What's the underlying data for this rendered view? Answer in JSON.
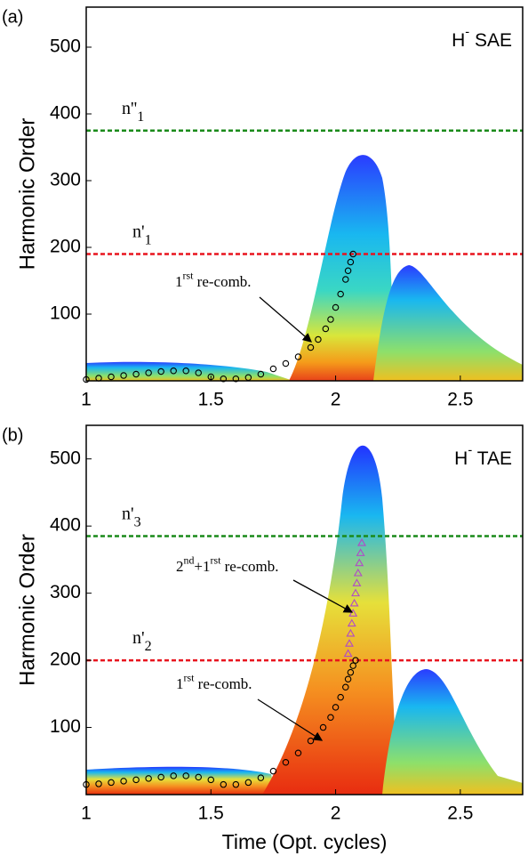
{
  "chart_data": [
    {
      "type": "spectrogram",
      "panel_label": "(a)",
      "title": [
        {
          "text": "H"
        },
        {
          "sup": "-"
        },
        {
          "text": " SAE"
        }
      ],
      "ylabel": "Harmonic Order",
      "xlim": [
        1,
        2.75
      ],
      "ylim": [
        0,
        560
      ],
      "xticks": [
        1,
        1.5,
        2,
        2.5
      ],
      "yticks": [
        100,
        200,
        300,
        400,
        500
      ],
      "hlines": [
        {
          "label": "n''",
          "sub": "1",
          "value": 375,
          "color": "#1a8a1a"
        },
        {
          "label": "n'",
          "sub": "1",
          "value": 190,
          "color": "#e8141e"
        }
      ],
      "series": [
        {
          "marker": "circle",
          "color": "#000000",
          "x": [
            1.0,
            1.05,
            1.1,
            1.15,
            1.2,
            1.25,
            1.3,
            1.35,
            1.4,
            1.45,
            1.5,
            1.55,
            1.6,
            1.65,
            1.7,
            1.75,
            1.8,
            1.85,
            1.9,
            1.93,
            1.96,
            1.98,
            2.0,
            2.02,
            2.04,
            2.05,
            2.06,
            2.07
          ],
          "values": [
            2,
            4,
            6,
            8,
            10,
            12,
            14,
            15,
            15,
            12,
            6,
            3,
            3,
            5,
            10,
            18,
            26,
            36,
            50,
            62,
            78,
            92,
            110,
            130,
            152,
            165,
            178,
            190
          ]
        }
      ],
      "annotations": [
        [
          {
            "text": "1"
          },
          {
            "sup": "rst"
          },
          {
            "text": " re-comb."
          }
        ]
      ]
    },
    {
      "type": "spectrogram",
      "panel_label": "(b)",
      "title": [
        {
          "text": "H"
        },
        {
          "sup": "-"
        },
        {
          "text": " TAE"
        }
      ],
      "ylabel": "Harmonic Order",
      "xlabel": "Time (Opt. cycles)",
      "xlim": [
        1,
        2.75
      ],
      "ylim": [
        0,
        550
      ],
      "xticks": [
        1,
        1.5,
        2,
        2.5
      ],
      "yticks": [
        100,
        200,
        300,
        400,
        500
      ],
      "hlines": [
        {
          "label": "n'",
          "sub": "3",
          "value": 385,
          "color": "#1a8a1a"
        },
        {
          "label": "n'",
          "sub": "2",
          "value": 200,
          "color": "#e8141e"
        }
      ],
      "series": [
        {
          "marker": "circle",
          "color": "#000000",
          "x": [
            1.0,
            1.05,
            1.1,
            1.15,
            1.2,
            1.25,
            1.3,
            1.35,
            1.4,
            1.45,
            1.5,
            1.55,
            1.6,
            1.65,
            1.7,
            1.75,
            1.8,
            1.85,
            1.9,
            1.95,
            1.98,
            2.0,
            2.02,
            2.04,
            2.05,
            2.06,
            2.07,
            2.08
          ],
          "values": [
            15,
            16,
            18,
            20,
            22,
            24,
            26,
            28,
            28,
            26,
            22,
            15,
            15,
            18,
            25,
            35,
            48,
            62,
            80,
            100,
            115,
            130,
            145,
            160,
            172,
            182,
            192,
            200
          ]
        },
        {
          "marker": "triangle",
          "color": "#b04ac8",
          "x": [
            2.05,
            2.055,
            2.06,
            2.065,
            2.07,
            2.075,
            2.08,
            2.085,
            2.09,
            2.095,
            2.1,
            2.105
          ],
          "values": [
            210,
            225,
            240,
            255,
            270,
            285,
            300,
            315,
            330,
            345,
            360,
            375
          ]
        }
      ],
      "annotations": [
        [
          {
            "text": "2"
          },
          {
            "sup": "nd"
          },
          {
            "text": "+1"
          },
          {
            "sup": "rst"
          },
          {
            "text": " re-comb."
          }
        ],
        [
          {
            "text": "1"
          },
          {
            "sup": "rst"
          },
          {
            "text": " re-comb."
          }
        ]
      ]
    }
  ]
}
